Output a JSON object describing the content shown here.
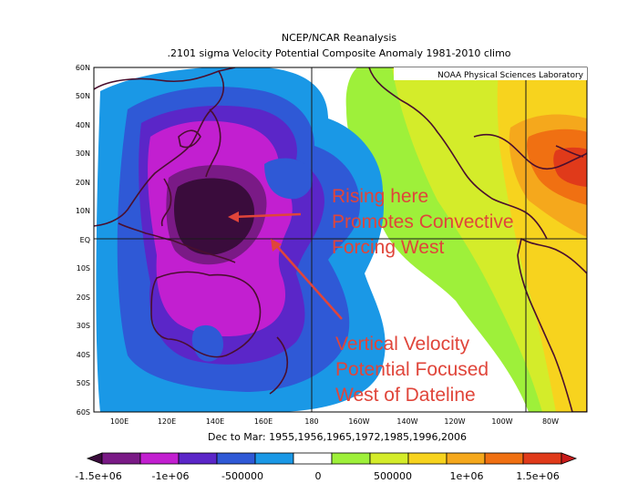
{
  "title_line1": "NCEP/NCAR Reanalysis",
  "title_line2": ".2101 sigma Velocity Potential  Composite Anomaly 1981-2010 climo",
  "credit": "NOAA Physical Sciences Laboratory",
  "subtitle": "Dec to Mar: 1955,1956,1965,1972,1985,1996,2006",
  "lat_labels": [
    "60N",
    "50N",
    "40N",
    "30N",
    "20N",
    "10N",
    "EQ",
    "10S",
    "20S",
    "30S",
    "40S",
    "50S",
    "60S"
  ],
  "lon_labels": [
    "100E",
    "120E",
    "140E",
    "160E",
    "180",
    "160W",
    "140W",
    "120W",
    "100W",
    "80W"
  ],
  "colorbar": {
    "labels": [
      "-1.5e+06",
      "-1e+06",
      "-500000",
      "0",
      "500000",
      "1e+06",
      "1.5e+06"
    ],
    "colors": [
      "#3a0c3c",
      "#7a1a86",
      "#c21fd0",
      "#5b26c8",
      "#2f59d6",
      "#1a98e6",
      "#ffffff",
      "#9ef03a",
      "#d4ec2a",
      "#f7d31e",
      "#f5a81c",
      "#f07012",
      "#e03a1a",
      "#c81a1a"
    ]
  },
  "annotations": {
    "rising_line1": "Rising here",
    "rising_line2": "Promotes Convective",
    "rising_line3": "Forcing West",
    "vertical_line1": "Vertical Velocity",
    "vertical_line2": "Potential Focused",
    "vertical_line3": "West of Dateline"
  },
  "map": {
    "lon_range": [
      "95E",
      "65W"
    ],
    "lat_range": [
      "60S",
      "60N"
    ],
    "negative_center": "approx 0-15N, 130-160E",
    "positive_center": "approx 20-30N, 70-60W"
  }
}
